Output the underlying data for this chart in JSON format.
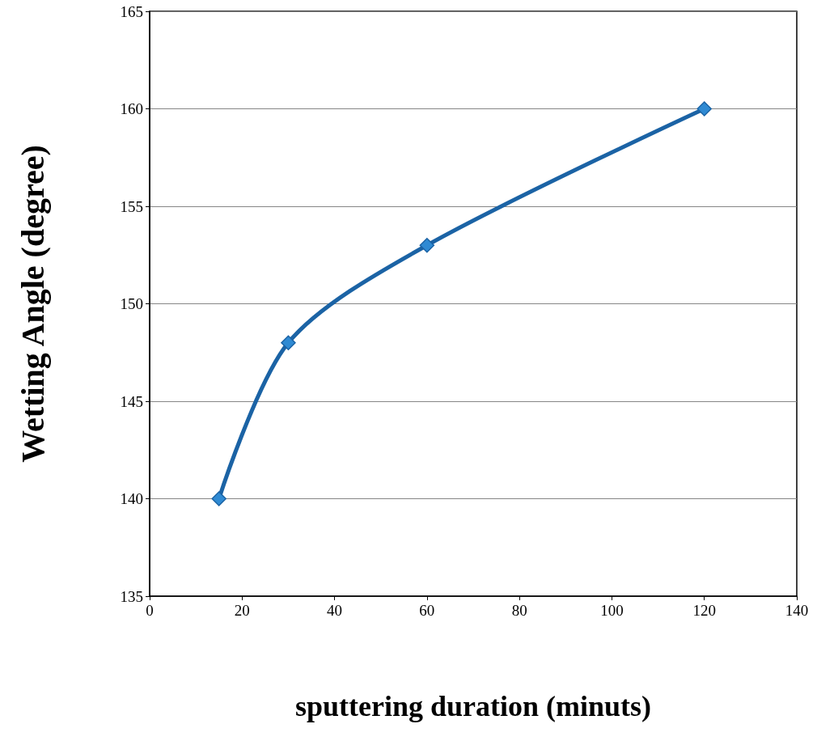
{
  "chart_data": {
    "type": "line",
    "xlabel": "sputtering duration (minuts)",
    "ylabel": "Wetting Angle (degree)",
    "x": [
      15,
      30,
      60,
      120
    ],
    "series": [
      {
        "color": "#1b63a5",
        "values": [
          140,
          148,
          153,
          160
        ]
      }
    ],
    "xlim": [
      0,
      140
    ],
    "xticks": [
      0,
      20,
      40,
      60,
      80,
      100,
      120,
      140
    ],
    "ylim": [
      135,
      165
    ],
    "yticks": [
      135,
      140,
      145,
      150,
      155,
      160,
      165
    ],
    "grid": "y",
    "marker": "diamond",
    "line_style": "solid"
  }
}
